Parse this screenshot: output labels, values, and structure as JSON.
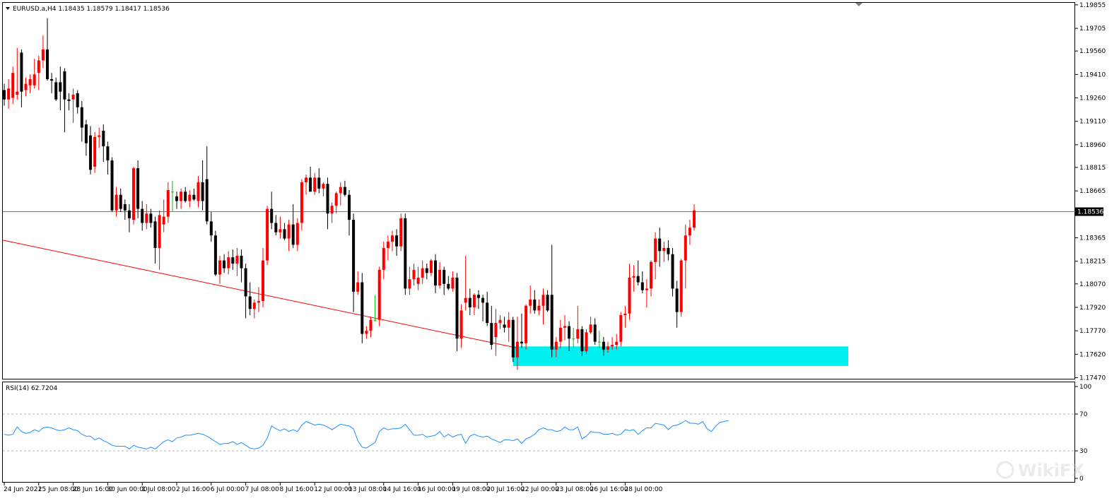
{
  "colors": {
    "bull": "#ff0000",
    "bear": "#000000",
    "doji": "#00c000",
    "trendline": "#ff0000",
    "zone": "#00f0f0",
    "price_line": "#6b7d93",
    "rsi": "#1e90ff",
    "rsi_level": "#b4b4b4",
    "frame": "#000000",
    "price_box_bg": "#000000",
    "price_box_fg": "#ffffff"
  },
  "header": {
    "symbol_line": "EURUSD.a,H4  1.18435 1.18579 1.18417 1.18536",
    "collapse_icon": "triangle-down-icon"
  },
  "rsi_header": "RSI(14) 62.7204",
  "watermark": "WikiFX",
  "chart_data": [
    {
      "type": "candlestick",
      "symbol": "EURUSD.a",
      "timeframe": "H4",
      "ohlc_header": {
        "open": 1.18435,
        "high": 1.18579,
        "low": 1.18417,
        "close": 1.18536
      },
      "current_price_label": "1.18536",
      "current_price": 1.18536,
      "ylim": [
        1.1747,
        1.1985
      ],
      "y_tick_labels": [
        "1.19855",
        "1.19705",
        "1.19560",
        "1.19410",
        "1.19260",
        "1.19110",
        "1.18960",
        "1.18815",
        "1.18665",
        "1.18365",
        "1.18215",
        "1.18070",
        "1.17920",
        "1.17770",
        "1.17620",
        "1.17470"
      ],
      "y_tick_values": [
        1.19855,
        1.19705,
        1.1956,
        1.1941,
        1.1926,
        1.1911,
        1.1896,
        1.18815,
        1.18665,
        1.18365,
        1.18215,
        1.1807,
        1.1792,
        1.1777,
        1.1762,
        1.1747
      ],
      "x_tick_labels": [
        "24 Jun 2021",
        "25 Jun 08:00",
        "28 Jun 16:00",
        "30 Jun 00:00",
        "1 Jul 08:00",
        "2 Jul 16:00",
        "6 Jul 00:00",
        "7 Jul 08:00",
        "8 Jul 16:00",
        "12 Jul 00:00",
        "13 Jul 08:00",
        "14 Jul 16:00",
        "16 Jul 00:00",
        "19 Jul 08:00",
        "20 Jul 16:00",
        "22 Jul 00:00",
        "23 Jul 08:00",
        "26 Jul 16:00",
        "28 Jul 00:00"
      ],
      "x_tick_bars": [
        0,
        8,
        16,
        24,
        32,
        40,
        48,
        56,
        64,
        72,
        80,
        88,
        96,
        104,
        112,
        120,
        128,
        136,
        144
      ],
      "candles": [
        [
          1.1931,
          1.1935,
          1.1921,
          1.1925
        ],
        [
          1.1925,
          1.1938,
          1.1919,
          1.1932
        ],
        [
          1.1926,
          1.1946,
          1.1922,
          1.1942
        ],
        [
          1.1928,
          1.1958,
          1.1925,
          1.193
        ],
        [
          1.1955,
          1.1957,
          1.192,
          1.193
        ],
        [
          1.1931,
          1.1939,
          1.1927,
          1.1935
        ],
        [
          1.1934,
          1.1941,
          1.1929,
          1.1938
        ],
        [
          1.1934,
          1.1951,
          1.1932,
          1.1941
        ],
        [
          1.1942,
          1.1953,
          1.1931,
          1.195
        ],
        [
          1.195,
          1.1966,
          1.1945,
          1.1957
        ],
        [
          1.1957,
          1.1977,
          1.1937,
          1.1938
        ],
        [
          1.1938,
          1.1942,
          1.1929,
          1.1937
        ],
        [
          1.1936,
          1.1939,
          1.1924,
          1.1925
        ],
        [
          1.1936,
          1.1946,
          1.1918,
          1.193
        ],
        [
          1.1943,
          1.1945,
          1.1904,
          1.1925
        ],
        [
          1.1925,
          1.1929,
          1.1918,
          1.1924
        ],
        [
          1.1925,
          1.1932,
          1.191,
          1.1928
        ],
        [
          1.1929,
          1.1931,
          1.1916,
          1.192
        ],
        [
          1.192,
          1.1924,
          1.1898,
          1.1907
        ],
        [
          1.1909,
          1.1912,
          1.1889,
          1.1897
        ],
        [
          1.1902,
          1.1908,
          1.1877,
          1.188
        ],
        [
          1.1882,
          1.1904,
          1.1878,
          1.1901
        ],
        [
          1.1901,
          1.1907,
          1.1894,
          1.1902
        ],
        [
          1.1905,
          1.1909,
          1.1885,
          1.1895
        ],
        [
          1.1895,
          1.1898,
          1.1877,
          1.1886
        ],
        [
          1.1886,
          1.1888,
          1.1853,
          1.1854
        ],
        [
          1.1854,
          1.1869,
          1.185,
          1.1864
        ],
        [
          1.1864,
          1.1868,
          1.1853,
          1.1855
        ],
        [
          1.1858,
          1.1861,
          1.1848,
          1.1854
        ],
        [
          1.1854,
          1.1858,
          1.184,
          1.1849
        ],
        [
          1.1848,
          1.1882,
          1.1845,
          1.1881
        ],
        [
          1.1881,
          1.1886,
          1.1849,
          1.1855
        ],
        [
          1.1855,
          1.186,
          1.1841,
          1.1846
        ],
        [
          1.1846,
          1.1858,
          1.1842,
          1.1852
        ],
        [
          1.1852,
          1.1855,
          1.1843,
          1.1846
        ],
        [
          1.1847,
          1.185,
          1.182,
          1.183
        ],
        [
          1.183,
          1.1854,
          1.1816,
          1.1851
        ],
        [
          1.1845,
          1.1861,
          1.184,
          1.185
        ],
        [
          1.185,
          1.1872,
          1.1846,
          1.1867
        ],
        [
          1.1866,
          1.1873,
          1.1853,
          1.1866
        ],
        [
          1.1863,
          1.1866,
          1.1855,
          1.186
        ],
        [
          1.186,
          1.1868,
          1.1855,
          1.1866
        ],
        [
          1.1866,
          1.1869,
          1.1859,
          1.186
        ],
        [
          1.186,
          1.1867,
          1.1856,
          1.1864
        ],
        [
          1.1864,
          1.1868,
          1.186,
          1.1861
        ],
        [
          1.186,
          1.1876,
          1.1856,
          1.1872
        ],
        [
          1.1872,
          1.1886,
          1.1854,
          1.186
        ],
        [
          1.1874,
          1.1895,
          1.1845,
          1.1847
        ],
        [
          1.1847,
          1.1853,
          1.1834,
          1.1838
        ],
        [
          1.1838,
          1.1841,
          1.1812,
          1.1813
        ],
        [
          1.1813,
          1.1825,
          1.1807,
          1.1822
        ],
        [
          1.1822,
          1.1826,
          1.1814,
          1.1817
        ],
        [
          1.1817,
          1.1828,
          1.1813,
          1.1824
        ],
        [
          1.1824,
          1.1829,
          1.1816,
          1.182
        ],
        [
          1.182,
          1.183,
          1.1812,
          1.1825
        ],
        [
          1.1825,
          1.1829,
          1.1808,
          1.1817
        ],
        [
          1.1817,
          1.182,
          1.1785,
          1.1799
        ],
        [
          1.1799,
          1.1808,
          1.1787,
          1.1791
        ],
        [
          1.1791,
          1.1797,
          1.1785,
          1.1795
        ],
        [
          1.1795,
          1.1805,
          1.1789,
          1.1796
        ],
        [
          1.1796,
          1.183,
          1.1792,
          1.1822
        ],
        [
          1.1822,
          1.1857,
          1.1819,
          1.1855
        ],
        [
          1.1855,
          1.1866,
          1.1842,
          1.1846
        ],
        [
          1.1846,
          1.1851,
          1.1838,
          1.184
        ],
        [
          1.184,
          1.185,
          1.1836,
          1.1842
        ],
        [
          1.1842,
          1.1846,
          1.1835,
          1.1836
        ],
        [
          1.1836,
          1.1848,
          1.1828,
          1.1845
        ],
        [
          1.1845,
          1.1858,
          1.183,
          1.1832
        ],
        [
          1.1832,
          1.1849,
          1.1828,
          1.1846
        ],
        [
          1.1846,
          1.1874,
          1.1841,
          1.1872
        ],
        [
          1.1872,
          1.1877,
          1.1864,
          1.1875
        ],
        [
          1.1875,
          1.1882,
          1.1866,
          1.1866
        ],
        [
          1.1866,
          1.1878,
          1.1864,
          1.1875
        ],
        [
          1.1875,
          1.1881,
          1.1865,
          1.1868
        ],
        [
          1.1868,
          1.1872,
          1.1863,
          1.1871
        ],
        [
          1.1871,
          1.1875,
          1.1842,
          1.1852
        ],
        [
          1.1852,
          1.1859,
          1.1846,
          1.1857
        ],
        [
          1.1857,
          1.1866,
          1.1852,
          1.1865
        ],
        [
          1.1865,
          1.1872,
          1.1857,
          1.1869
        ],
        [
          1.1869,
          1.1873,
          1.1863,
          1.1864
        ],
        [
          1.1864,
          1.1867,
          1.1838,
          1.1848
        ],
        [
          1.1848,
          1.1852,
          1.1789,
          1.1802
        ],
        [
          1.1802,
          1.1815,
          1.18,
          1.1808
        ],
        [
          1.1808,
          1.1814,
          1.1769,
          1.1775
        ],
        [
          1.1775,
          1.178,
          1.1772,
          1.1777
        ],
        [
          1.1777,
          1.1786,
          1.1773,
          1.1784
        ],
        [
          1.1784,
          1.18,
          1.1783,
          1.1784
        ],
        [
          1.1784,
          1.1818,
          1.178,
          1.1816
        ],
        [
          1.1816,
          1.1834,
          1.181,
          1.183
        ],
        [
          1.183,
          1.1838,
          1.1822,
          1.1834
        ],
        [
          1.1834,
          1.1841,
          1.1828,
          1.1838
        ],
        [
          1.1838,
          1.1842,
          1.1825,
          1.1831
        ],
        [
          1.1831,
          1.1852,
          1.1828,
          1.1849
        ],
        [
          1.1849,
          1.1852,
          1.18,
          1.1804
        ],
        [
          1.1804,
          1.1818,
          1.18,
          1.181
        ],
        [
          1.181,
          1.182,
          1.1806,
          1.1816
        ],
        [
          1.1807,
          1.1818,
          1.1803,
          1.1811
        ],
        [
          1.1811,
          1.1822,
          1.1807,
          1.1817
        ],
        [
          1.1817,
          1.182,
          1.181,
          1.1814
        ],
        [
          1.1814,
          1.1823,
          1.1812,
          1.1822
        ],
        [
          1.1822,
          1.1826,
          1.1801,
          1.1806
        ],
        [
          1.1806,
          1.1821,
          1.1804,
          1.1816
        ],
        [
          1.1816,
          1.1818,
          1.18,
          1.1807
        ],
        [
          1.1807,
          1.1812,
          1.1803,
          1.1804
        ],
        [
          1.1804,
          1.1815,
          1.1802,
          1.1811
        ],
        [
          1.1811,
          1.1814,
          1.1764,
          1.1772
        ],
        [
          1.1772,
          1.1794,
          1.1766,
          1.179
        ],
        [
          1.1795,
          1.1825,
          1.179,
          1.1798
        ],
        [
          1.1798,
          1.1804,
          1.1787,
          1.1792
        ],
        [
          1.1792,
          1.1801,
          1.1787,
          1.18
        ],
        [
          1.18,
          1.1803,
          1.1791,
          1.1798
        ],
        [
          1.1798,
          1.18,
          1.1783,
          1.1795
        ],
        [
          1.1795,
          1.1802,
          1.178,
          1.1782
        ],
        [
          1.1782,
          1.1793,
          1.1765,
          1.1768
        ],
        [
          1.1773,
          1.1791,
          1.1761,
          1.1782
        ],
        [
          1.1782,
          1.1787,
          1.1778,
          1.1784
        ],
        [
          1.1781,
          1.1786,
          1.1776,
          1.1779
        ],
        [
          1.1779,
          1.1789,
          1.177,
          1.1784
        ],
        [
          1.1784,
          1.1786,
          1.1757,
          1.176
        ],
        [
          1.176,
          1.1786,
          1.1752,
          1.177
        ],
        [
          1.177,
          1.1788,
          1.1766,
          1.1769
        ],
        [
          1.1769,
          1.1794,
          1.1765,
          1.1793
        ],
        [
          1.1793,
          1.1806,
          1.1788,
          1.1797
        ],
        [
          1.1797,
          1.1803,
          1.1788,
          1.179
        ],
        [
          1.179,
          1.1797,
          1.1787,
          1.1793
        ],
        [
          1.1793,
          1.1804,
          1.1781,
          1.18
        ],
        [
          1.18,
          1.1803,
          1.1789,
          1.179
        ],
        [
          1.18,
          1.1832,
          1.176,
          1.1765
        ],
        [
          1.1765,
          1.1773,
          1.176,
          1.177
        ],
        [
          1.177,
          1.1784,
          1.1766,
          1.1779
        ],
        [
          1.1779,
          1.1787,
          1.1771,
          1.178
        ],
        [
          1.178,
          1.1783,
          1.1764,
          1.1772
        ],
        [
          1.1772,
          1.1779,
          1.1766,
          1.1772
        ],
        [
          1.1772,
          1.1793,
          1.1769,
          1.1778
        ],
        [
          1.1778,
          1.178,
          1.1761,
          1.1764
        ],
        [
          1.1764,
          1.1778,
          1.1762,
          1.1776
        ],
        [
          1.1776,
          1.1786,
          1.1775,
          1.1781
        ],
        [
          1.1781,
          1.1785,
          1.1768,
          1.177
        ],
        [
          1.177,
          1.1777,
          1.1766,
          1.177
        ],
        [
          1.177,
          1.1773,
          1.1761,
          1.1765
        ],
        [
          1.1765,
          1.177,
          1.1763,
          1.1767
        ],
        [
          1.1767,
          1.1773,
          1.1765,
          1.1768
        ],
        [
          1.1768,
          1.1775,
          1.1765,
          1.177
        ],
        [
          1.177,
          1.1789,
          1.1767,
          1.1787
        ],
        [
          1.1787,
          1.1793,
          1.1779,
          1.1788
        ],
        [
          1.1788,
          1.182,
          1.1784,
          1.1811
        ],
        [
          1.1811,
          1.1819,
          1.1802,
          1.1812
        ],
        [
          1.1812,
          1.1822,
          1.1806,
          1.1808
        ],
        [
          1.1808,
          1.1815,
          1.1801,
          1.1803
        ],
        [
          1.1803,
          1.181,
          1.1792,
          1.1804
        ],
        [
          1.1804,
          1.1822,
          1.1799,
          1.1821
        ],
        [
          1.1821,
          1.184,
          1.181,
          1.1836
        ],
        [
          1.1836,
          1.1843,
          1.1818,
          1.1828
        ],
        [
          1.1828,
          1.1834,
          1.1821,
          1.183
        ],
        [
          1.183,
          1.1835,
          1.1822,
          1.1826
        ],
        [
          1.1826,
          1.183,
          1.1799,
          1.1804
        ],
        [
          1.1804,
          1.1809,
          1.1779,
          1.1789
        ],
        [
          1.1789,
          1.1823,
          1.1786,
          1.1822
        ],
        [
          1.1822,
          1.1845,
          1.1804,
          1.1838
        ],
        [
          1.1838,
          1.1848,
          1.1832,
          1.1843
        ],
        [
          1.1843,
          1.1858,
          1.1841,
          1.1854
        ]
      ],
      "annotations": {
        "trendline": {
          "from_bar": 0,
          "from_price": 1.1835,
          "to_bar": 119,
          "to_price": 1.1766
        },
        "zone": {
          "from_bar": 118,
          "to_bar": 199,
          "low": 1.17545,
          "high": 1.1767
        }
      }
    },
    {
      "type": "line",
      "name": "RSI(14) 62.7204",
      "ylim": [
        0,
        100
      ],
      "y_tick_labels": [
        "100",
        "70",
        "30",
        "0"
      ],
      "y_tick_values": [
        100,
        70,
        30,
        0
      ],
      "levels": [
        70,
        30
      ],
      "values": [
        48,
        47,
        48,
        56,
        51,
        49,
        50,
        53,
        51,
        55,
        56,
        55,
        53,
        52,
        53,
        55,
        53,
        52,
        48,
        46,
        46,
        42,
        44,
        41,
        39,
        36,
        35,
        35,
        35,
        32,
        36,
        34,
        33,
        32,
        34,
        32,
        36,
        40,
        42,
        40,
        44,
        45,
        47,
        47,
        48,
        49,
        48,
        46,
        43,
        40,
        37,
        38,
        38,
        40,
        37,
        39,
        36,
        33,
        32,
        33,
        36,
        44,
        57,
        54,
        52,
        54,
        51,
        53,
        51,
        58,
        62,
        60,
        58,
        59,
        58,
        56,
        53,
        56,
        59,
        58,
        57,
        54,
        41,
        34,
        33,
        36,
        39,
        51,
        55,
        53,
        54,
        54,
        55,
        59,
        53,
        47,
        47,
        48,
        45,
        46,
        47,
        51,
        45,
        48,
        45,
        47,
        48,
        38,
        46,
        48,
        46,
        45,
        46,
        43,
        41,
        39,
        42,
        42,
        41,
        43,
        38,
        43,
        45,
        48,
        53,
        55,
        53,
        53,
        51,
        52,
        56,
        53,
        53,
        56,
        43,
        46,
        51,
        50,
        50,
        48,
        48,
        49,
        47,
        48,
        53,
        52,
        53,
        48,
        52,
        55,
        55,
        60,
        59,
        58,
        53,
        57,
        58,
        60,
        63,
        60,
        60,
        59,
        62,
        54,
        51,
        57,
        61,
        62,
        63
      ],
      "current_value": 62.7204
    }
  ]
}
